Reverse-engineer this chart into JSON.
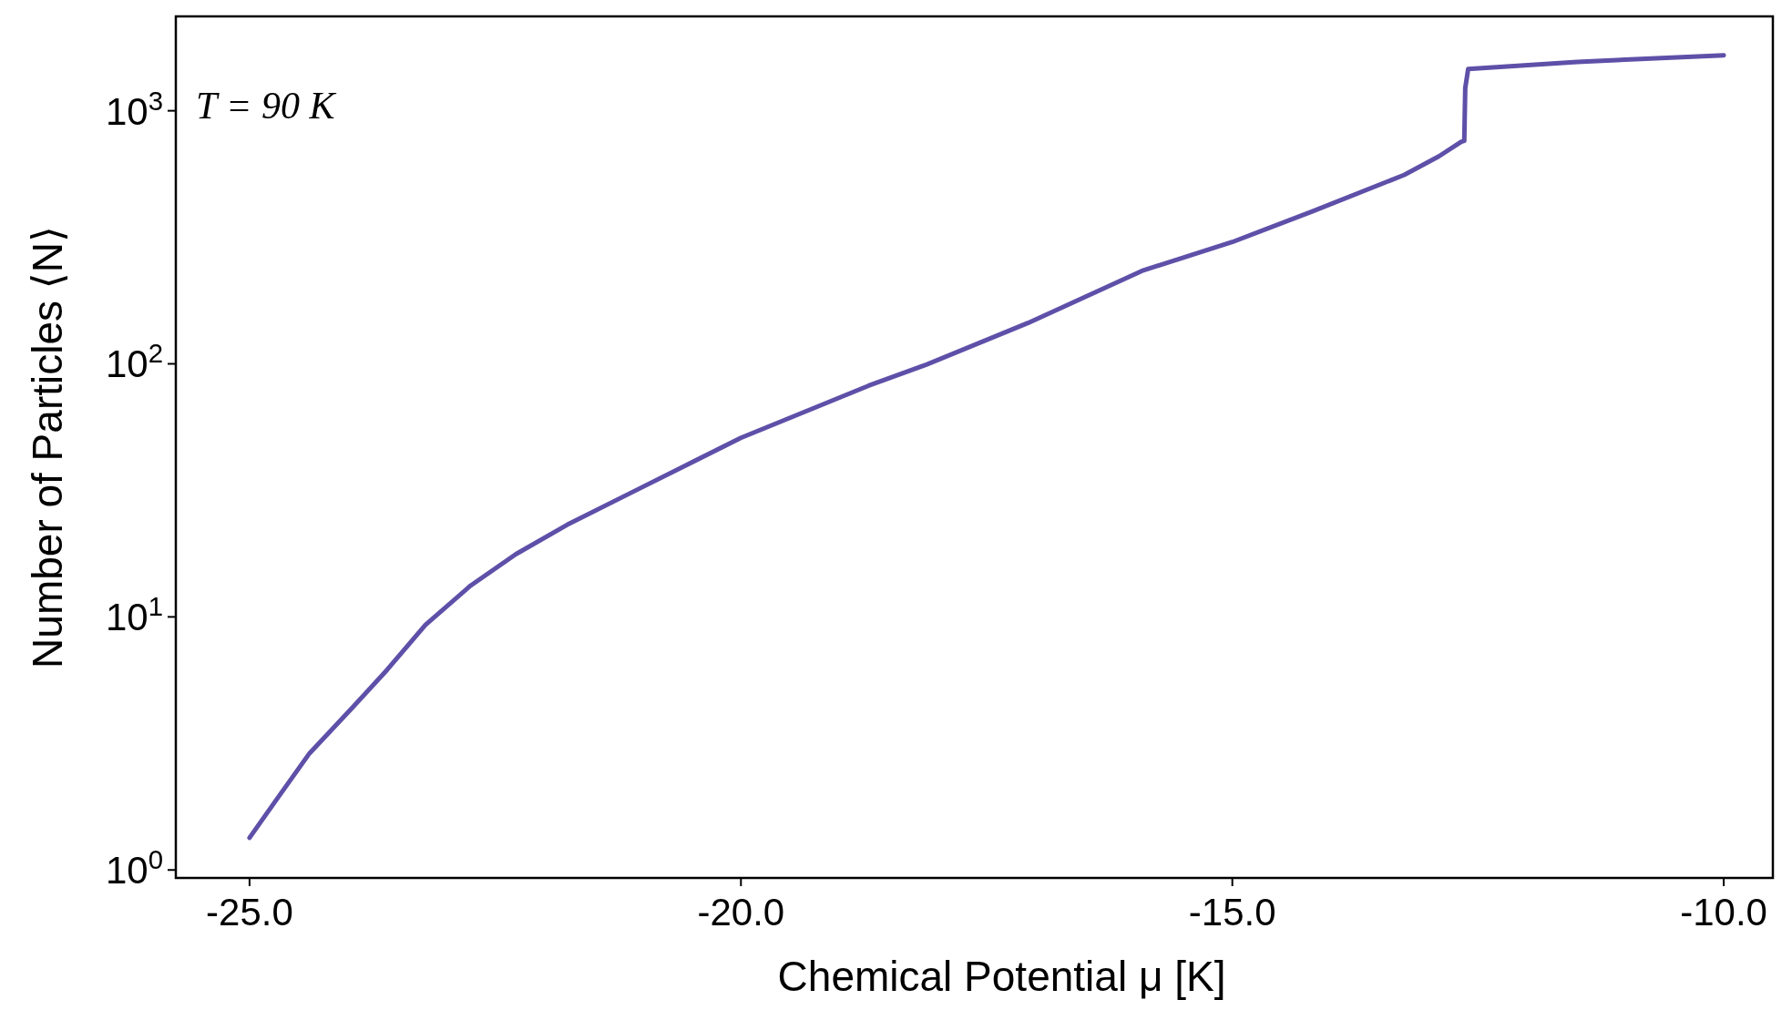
{
  "chart_data": {
    "type": "line",
    "xlabel": "Chemical Potential μ [K]",
    "ylabel": "Number of Particles ⟨N⟩",
    "annotations": [
      "T = 90 K"
    ],
    "x": [
      -25,
      -24.72,
      -24.39,
      -23.96,
      -23.6,
      -23.21,
      -22.75,
      -22.29,
      -21.77,
      -21.05,
      -20,
      -18.7,
      -18.12,
      -17.08,
      -15.92,
      -15,
      -14.18,
      -13.25,
      -12.9,
      -12.67,
      -12.64,
      -12.63,
      -12.6,
      -11.49,
      -10
    ],
    "series": [
      {
        "color": "#5e50a8",
        "values": [
          1.34,
          1.91,
          2.89,
          4.35,
          6.18,
          9.3,
          13.3,
          17.7,
          23.1,
          31.9,
          51,
          82,
          99,
          145,
          233,
          303,
          401,
          558,
          660,
          755,
          761,
          1230,
          1463,
          1560,
          1657
        ]
      }
    ],
    "log": "y",
    "xlim": [
      -25.75,
      -9.5
    ],
    "ylim": [
      0.93,
      2360
    ],
    "xticks": [
      {
        "value": -25,
        "label": "-25.0"
      },
      {
        "value": -20,
        "label": "-20.0"
      },
      {
        "value": -15,
        "label": "-15.0"
      },
      {
        "value": -10,
        "label": "-10.0"
      }
    ],
    "yticks": [
      {
        "value": 1,
        "label": "10$^{0}$"
      },
      {
        "value": 10,
        "label": "10$^{1}$"
      },
      {
        "value": 100,
        "label": "10$^{2}$"
      },
      {
        "value": 1000,
        "label": "10$^{3}$"
      }
    ],
    "grid": false,
    "marker": "none",
    "line_style": "solid"
  }
}
